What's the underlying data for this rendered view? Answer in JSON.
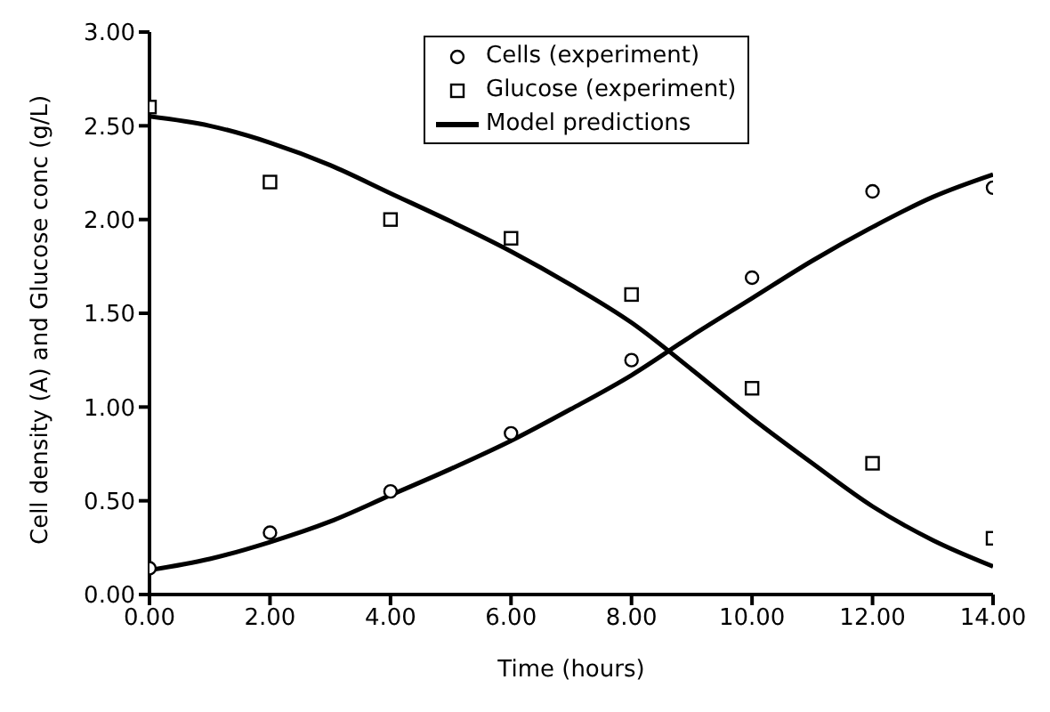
{
  "chart_data": {
    "type": "scatter",
    "xlabel": "Time (hours)",
    "ylabel": "Cell density (A) and Glucose conc (g/L)",
    "xlim": [
      0,
      14
    ],
    "xticks": [
      {
        "value": 0,
        "label": "0.00"
      },
      {
        "value": 2,
        "label": "2.00"
      },
      {
        "value": 4,
        "label": "4.00"
      },
      {
        "value": 6,
        "label": "6.00"
      },
      {
        "value": 8,
        "label": "8.00"
      },
      {
        "value": 10,
        "label": "10.00"
      },
      {
        "value": 12,
        "label": "12.00"
      },
      {
        "value": 14,
        "label": "14.00"
      }
    ],
    "ylim": [
      0,
      3
    ],
    "yticks": [
      {
        "value": 0,
        "label": "0.00"
      },
      {
        "value": 0.5,
        "label": "0.50"
      },
      {
        "value": 1,
        "label": "1.00"
      },
      {
        "value": 1.5,
        "label": "1.50"
      },
      {
        "value": 2,
        "label": "2.00"
      },
      {
        "value": 2.5,
        "label": "2.50"
      },
      {
        "value": 3,
        "label": "3.00"
      }
    ],
    "grid": false,
    "legend": "top",
    "series": [
      {
        "name": "Cells (experiment)",
        "marker": "circle",
        "color": "#000000",
        "x": [
          0,
          2,
          4,
          6,
          8,
          10,
          12,
          14
        ],
        "values": [
          0.14,
          0.33,
          0.55,
          0.86,
          1.25,
          1.69,
          2.15,
          2.17
        ]
      },
      {
        "name": "Glucose (experiment)",
        "marker": "square",
        "color": "#000000",
        "x": [
          0,
          2,
          4,
          6,
          8,
          10,
          12,
          14
        ],
        "values": [
          2.6,
          2.2,
          2.0,
          1.9,
          1.6,
          1.1,
          0.7,
          0.3
        ]
      },
      {
        "name": "Model predictions",
        "type": "line",
        "marker": "none",
        "line_style": "solid",
        "color": "#000000",
        "x": [
          0,
          1,
          2,
          3,
          4,
          5,
          6,
          7,
          8,
          9,
          10,
          11,
          12,
          13,
          14
        ],
        "values": [
          0.13,
          0.19,
          0.28,
          0.39,
          0.53,
          0.67,
          0.82,
          0.99,
          1.17,
          1.38,
          1.58,
          1.78,
          1.96,
          2.12,
          2.24
        ]
      },
      {
        "type": "line",
        "marker": "none",
        "line_style": "solid",
        "color": "#000000",
        "x": [
          0,
          1,
          2,
          3,
          4,
          5,
          6,
          7,
          8,
          9,
          10,
          11,
          12,
          13,
          14
        ],
        "values": [
          2.55,
          2.5,
          2.41,
          2.29,
          2.14,
          1.99,
          1.83,
          1.65,
          1.45,
          1.2,
          0.94,
          0.7,
          0.47,
          0.29,
          0.15
        ]
      }
    ]
  }
}
